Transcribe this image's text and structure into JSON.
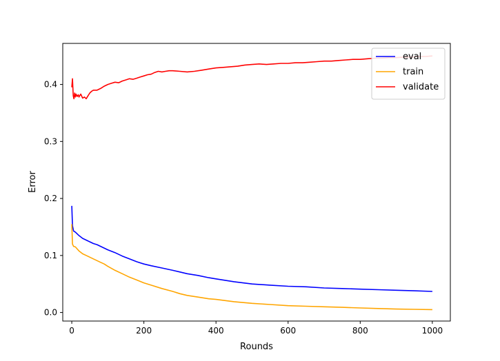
{
  "chart_data": {
    "type": "line",
    "title": "",
    "xlabel": "Rounds",
    "ylabel": "Error",
    "xlim": [
      -25,
      1050
    ],
    "ylim": [
      -0.015,
      0.472
    ],
    "x_ticks": [
      0,
      200,
      400,
      600,
      800,
      1000
    ],
    "x_tick_labels": [
      "0",
      "200",
      "400",
      "600",
      "800",
      "1000"
    ],
    "y_ticks": [
      0.0,
      0.1,
      0.2,
      0.3,
      0.4
    ],
    "y_tick_labels": [
      "0.0",
      "0.1",
      "0.2",
      "0.3",
      "0.4"
    ],
    "grid": false,
    "legend_position": "top-right",
    "series": [
      {
        "name": "eval",
        "color": "#0000ff",
        "x": [
          0,
          2,
          5,
          10,
          20,
          30,
          40,
          50,
          60,
          70,
          80,
          90,
          100,
          120,
          140,
          160,
          180,
          200,
          220,
          250,
          280,
          300,
          320,
          350,
          380,
          400,
          450,
          500,
          550,
          600,
          650,
          700,
          750,
          800,
          850,
          900,
          950,
          1000
        ],
        "values": [
          0.187,
          0.152,
          0.143,
          0.141,
          0.135,
          0.13,
          0.127,
          0.124,
          0.121,
          0.119,
          0.116,
          0.113,
          0.11,
          0.105,
          0.099,
          0.094,
          0.089,
          0.085,
          0.082,
          0.078,
          0.074,
          0.071,
          0.068,
          0.065,
          0.061,
          0.059,
          0.054,
          0.05,
          0.048,
          0.046,
          0.045,
          0.043,
          0.042,
          0.041,
          0.04,
          0.039,
          0.038,
          0.037
        ]
      },
      {
        "name": "train",
        "color": "#ffa500",
        "x": [
          0,
          2,
          5,
          10,
          20,
          30,
          40,
          50,
          60,
          70,
          80,
          90,
          100,
          120,
          140,
          160,
          180,
          200,
          220,
          250,
          280,
          300,
          320,
          350,
          380,
          400,
          450,
          500,
          550,
          600,
          650,
          700,
          750,
          800,
          850,
          900,
          950,
          1000
        ],
        "values": [
          0.155,
          0.12,
          0.116,
          0.115,
          0.108,
          0.103,
          0.1,
          0.097,
          0.094,
          0.091,
          0.088,
          0.085,
          0.081,
          0.074,
          0.068,
          0.062,
          0.057,
          0.052,
          0.048,
          0.042,
          0.037,
          0.033,
          0.03,
          0.027,
          0.024,
          0.023,
          0.019,
          0.016,
          0.014,
          0.012,
          0.011,
          0.01,
          0.009,
          0.008,
          0.007,
          0.006,
          0.0055,
          0.005
        ]
      },
      {
        "name": "validate",
        "color": "#ff0000",
        "x": [
          0,
          2,
          4,
          6,
          8,
          10,
          12,
          15,
          18,
          20,
          25,
          30,
          35,
          40,
          45,
          50,
          55,
          60,
          70,
          80,
          90,
          100,
          110,
          120,
          130,
          140,
          150,
          160,
          170,
          180,
          190,
          200,
          210,
          220,
          230,
          240,
          250,
          260,
          270,
          280,
          300,
          320,
          340,
          360,
          380,
          400,
          420,
          440,
          460,
          480,
          500,
          520,
          540,
          560,
          580,
          600,
          620,
          640,
          660,
          680,
          700,
          720,
          740,
          760,
          780,
          800,
          820,
          840,
          860,
          880,
          900,
          920,
          940,
          960,
          980,
          1000
        ],
        "values": [
          0.395,
          0.41,
          0.38,
          0.375,
          0.385,
          0.378,
          0.383,
          0.379,
          0.382,
          0.378,
          0.383,
          0.376,
          0.378,
          0.375,
          0.38,
          0.385,
          0.388,
          0.39,
          0.39,
          0.393,
          0.397,
          0.4,
          0.402,
          0.404,
          0.403,
          0.406,
          0.408,
          0.41,
          0.409,
          0.411,
          0.413,
          0.415,
          0.417,
          0.418,
          0.421,
          0.423,
          0.422,
          0.423,
          0.424,
          0.424,
          0.423,
          0.422,
          0.423,
          0.425,
          0.427,
          0.429,
          0.43,
          0.431,
          0.432,
          0.434,
          0.435,
          0.436,
          0.435,
          0.436,
          0.437,
          0.437,
          0.438,
          0.438,
          0.439,
          0.44,
          0.441,
          0.441,
          0.442,
          0.443,
          0.444,
          0.444,
          0.445,
          0.446,
          0.446,
          0.447,
          0.447,
          0.448,
          0.448,
          0.449,
          0.449,
          0.45
        ]
      }
    ]
  }
}
